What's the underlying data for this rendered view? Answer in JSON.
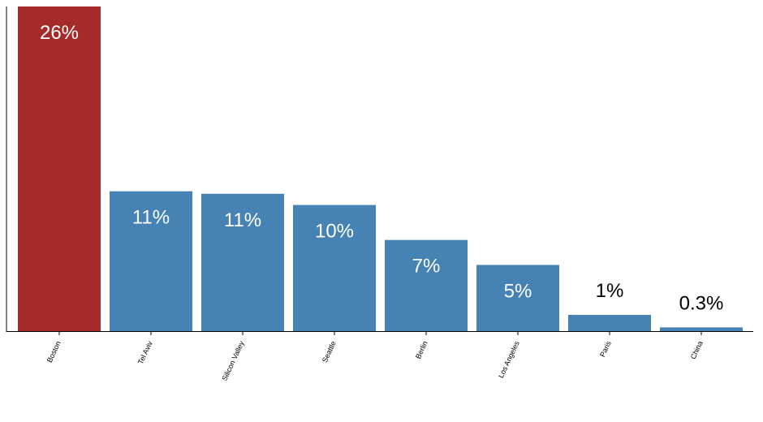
{
  "chart_data": {
    "type": "bar",
    "categories": [
      "Boston",
      "Tel Aviv",
      "Silicon Valley",
      "Seattle",
      "Berlin",
      "Los Angeles",
      "Paris",
      "China"
    ],
    "values": [
      26,
      11.2,
      11,
      10.1,
      7.3,
      5.3,
      1.3,
      0.3
    ],
    "value_labels": [
      "26%",
      "11%",
      "11%",
      "10%",
      "7%",
      "5%",
      "1%",
      "0.3%"
    ],
    "colors": [
      "#a52a2a",
      "#4682b4",
      "#4682b4",
      "#4682b4",
      "#4682b4",
      "#4682b4",
      "#4682b4",
      "#4682b4"
    ],
    "ylim": [
      0,
      26
    ]
  }
}
